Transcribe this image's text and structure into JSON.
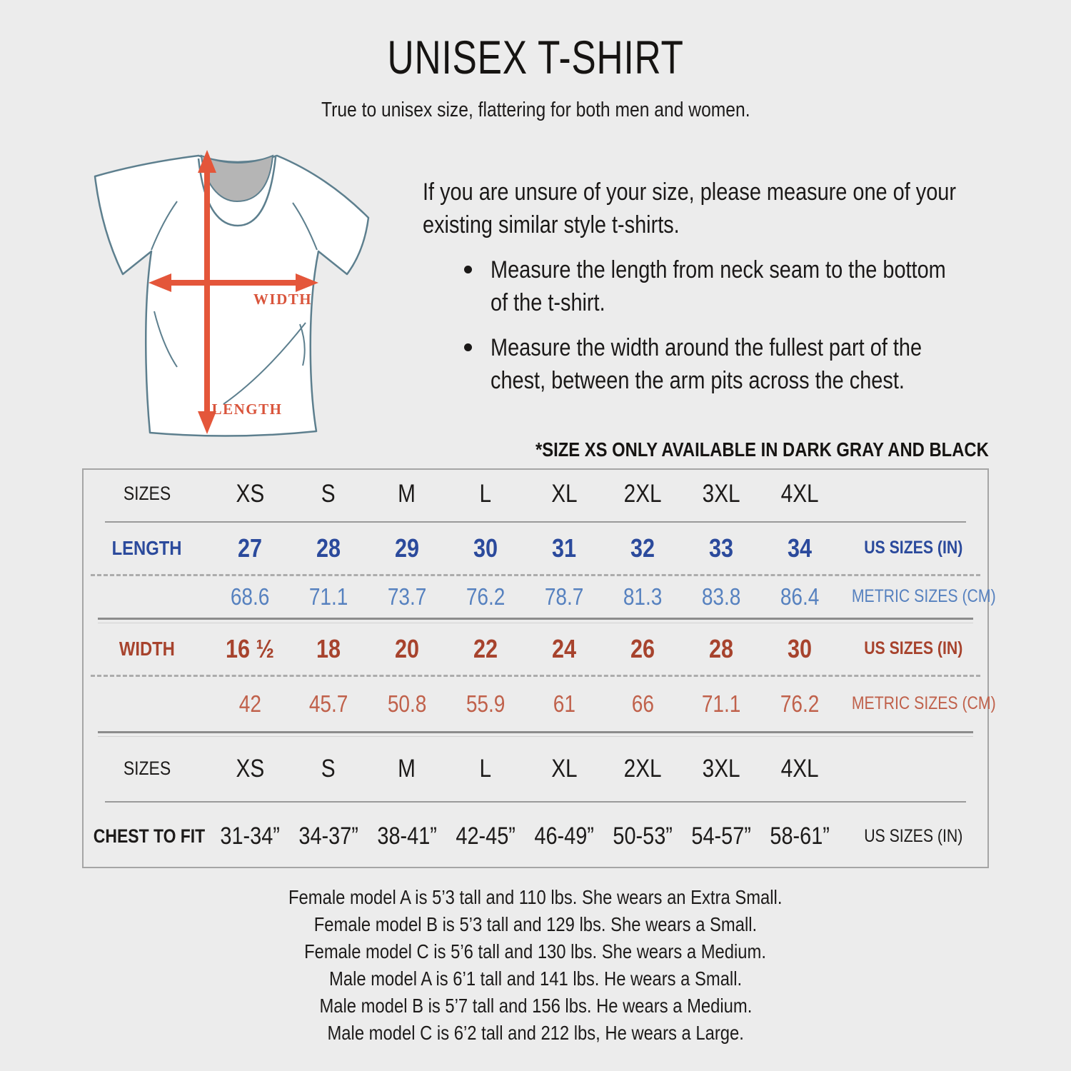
{
  "header": {
    "title": "UNISEX T-SHIRT",
    "subtitle": "True to unisex size, flattering for both men and women."
  },
  "diagram": {
    "width_label": "WIDTH",
    "length_label": "LENGTH"
  },
  "instructions": {
    "intro_lines": [
      "If you are unsure of your size, please measure one of your",
      "existing similar style t-shirts."
    ],
    "bullets": [
      {
        "lines": [
          "Measure the length from neck seam to the bottom",
          "of the t-shirt."
        ]
      },
      {
        "lines": [
          "Measure the width around the fullest part of the",
          "chest, between the arm pits across the chest."
        ]
      }
    ]
  },
  "note": "*SIZE XS ONLY AVAILABLE IN DARK GRAY AND BLACK",
  "size_table": {
    "rows": [
      {
        "kind": "sizes",
        "label": "SIZES",
        "values": [
          "XS",
          "S",
          "M",
          "L",
          "XL",
          "2XL",
          "3XL",
          "4XL"
        ],
        "right_label": "",
        "divider_after": "thin"
      },
      {
        "kind": "us-length",
        "label": "LENGTH",
        "values": [
          "27",
          "28",
          "29",
          "30",
          "31",
          "32",
          "33",
          "34"
        ],
        "right_label": "US SIZES (IN)",
        "divider_after": "dashed"
      },
      {
        "kind": "metric-length",
        "label": "",
        "values": [
          "68.6",
          "71.1",
          "73.7",
          "76.2",
          "78.7",
          "81.3",
          "83.8",
          "86.4"
        ],
        "right_label": "METRIC SIZES (CM)",
        "divider_after": "solid"
      },
      {
        "kind": "us-width",
        "label": "WIDTH",
        "values": [
          "16 ½",
          "18",
          "20",
          "22",
          "24",
          "26",
          "28",
          "30"
        ],
        "right_label": "US SIZES (IN)",
        "divider_after": "dashed"
      },
      {
        "kind": "metric-width",
        "label": "",
        "values": [
          "42",
          "45.7",
          "50.8",
          "55.9",
          "61",
          "66",
          "71.1",
          "76.2"
        ],
        "right_label": "METRIC SIZES (CM)",
        "divider_after": "solid"
      },
      {
        "kind": "sizes",
        "label": "SIZES",
        "values": [
          "XS",
          "S",
          "M",
          "L",
          "XL",
          "2XL",
          "3XL",
          "4XL"
        ],
        "right_label": "",
        "divider_after": "thin"
      },
      {
        "kind": "chest",
        "label": "CHEST TO FIT",
        "values": [
          "31-34”",
          "34-37”",
          "38-41”",
          "42-45”",
          "46-49”",
          "50-53”",
          "54-57”",
          "58-61”"
        ],
        "right_label": "US SIZES (IN)",
        "divider_after": null
      }
    ]
  },
  "footer": {
    "lines": [
      "Female model A is 5’3 tall and 110 lbs. She wears an Extra Small.",
      "Female model B is 5’3 tall and 129 lbs. She wears a Small.",
      "Female model C is 5’6 tall and 130 lbs. She wears a Medium.",
      "Male model A is 6’1 tall and 141 lbs. He wears a Small.",
      "Male model B is 5’7 tall and 156 lbs. He wears a Medium.",
      "Male model C is 6’2 tall and 212 lbs, He wears a Large."
    ]
  },
  "colors": {
    "background": "#ececec",
    "text": "#1d1b1a",
    "length_us": "#2b4a9c",
    "length_metric": "#5681bf",
    "width_us": "#a7432d",
    "width_metric": "#c0614b",
    "arrow": "#e4563a",
    "shirt_outline": "#5d7f8e",
    "neck_fill": "#b5b5b5"
  }
}
